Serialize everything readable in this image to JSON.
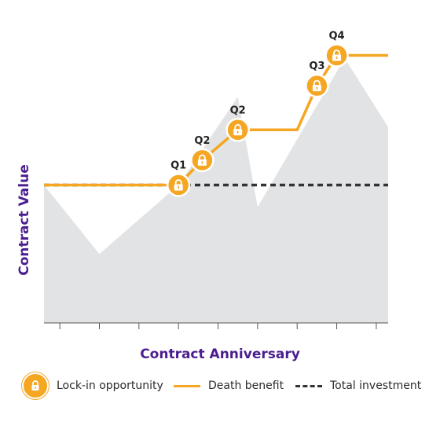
{
  "chart_data": {
    "type": "area",
    "xlabel": "Contract Anniversary",
    "ylabel": "Contract Value",
    "xlim": [
      0,
      8.7
    ],
    "ylim": [
      0,
      100
    ],
    "x_ticks": [
      0.4,
      1.4,
      2.4,
      3.4,
      4.4,
      5.4,
      6.4,
      7.4,
      8.4
    ],
    "series": [
      {
        "name": "",
        "kind": "area",
        "x": [
          0,
          1.4,
          3.4,
          4.9,
          5.4,
          7.6,
          8.7
        ],
        "y": [
          50,
          25,
          50,
          82,
          42,
          96,
          71
        ]
      },
      {
        "name": "Death benefit",
        "kind": "line",
        "x": [
          0,
          3.4,
          4,
          4.9,
          6.4,
          6.9,
          7.4,
          8.7
        ],
        "y": [
          50,
          50,
          59,
          70,
          70,
          86,
          97,
          97
        ]
      },
      {
        "name": "Total investment",
        "kind": "dashed-line",
        "x": [
          0,
          8.7
        ],
        "y": [
          50,
          50
        ]
      }
    ],
    "lock_points": [
      {
        "label": "Q1",
        "x": 3.4,
        "y": 50
      },
      {
        "label": "Q2",
        "x": 4,
        "y": 59
      },
      {
        "label": "Q2",
        "x": 4.9,
        "y": 70
      },
      {
        "label": "Q3",
        "x": 6.9,
        "y": 86
      },
      {
        "label": "Q4",
        "x": 7.4,
        "y": 97
      }
    ],
    "legend": {
      "position": "bottom",
      "entries": [
        "Lock-in opportunity",
        "Death benefit",
        "Total investment"
      ]
    },
    "colors": {
      "area": "#e2e3e5",
      "death_benefit": "#f5a623",
      "total_investment": "#333333",
      "axis_label": "#4b1e8f",
      "lock_fill": "#f5a623"
    }
  }
}
